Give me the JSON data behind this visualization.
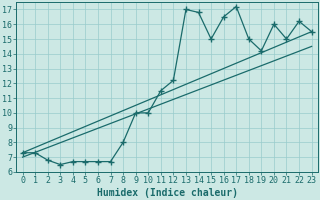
{
  "xlabel": "Humidex (Indice chaleur)",
  "background_color": "#cce8e4",
  "line_color": "#1a6b6b",
  "grid_color": "#99cccc",
  "xlim": [
    -0.5,
    23.5
  ],
  "ylim": [
    6,
    17.5
  ],
  "xticks": [
    0,
    1,
    2,
    3,
    4,
    5,
    6,
    7,
    8,
    9,
    10,
    11,
    12,
    13,
    14,
    15,
    16,
    17,
    18,
    19,
    20,
    21,
    22,
    23
  ],
  "yticks": [
    6,
    7,
    8,
    9,
    10,
    11,
    12,
    13,
    14,
    15,
    16,
    17
  ],
  "line1_x": [
    0,
    1,
    2,
    3,
    4,
    5,
    6,
    7,
    8,
    9,
    10,
    11,
    12,
    13,
    14,
    15,
    16,
    17,
    18,
    19,
    20,
    21,
    22,
    23
  ],
  "line1_y": [
    7.3,
    7.3,
    6.8,
    6.5,
    6.7,
    6.7,
    6.7,
    6.7,
    8.0,
    10.0,
    10.0,
    11.5,
    12.2,
    17.0,
    16.8,
    15.0,
    16.5,
    17.2,
    15.0,
    14.2,
    16.0,
    15.0,
    16.2,
    15.5
  ],
  "line2_x": [
    0,
    23
  ],
  "line2_y": [
    7.3,
    15.5
  ],
  "line3_x": [
    0,
    23
  ],
  "line3_y": [
    7.0,
    14.5
  ],
  "marker": "+",
  "markersize": 4,
  "linewidth": 0.9,
  "xlabel_fontsize": 7,
  "tick_fontsize": 6
}
